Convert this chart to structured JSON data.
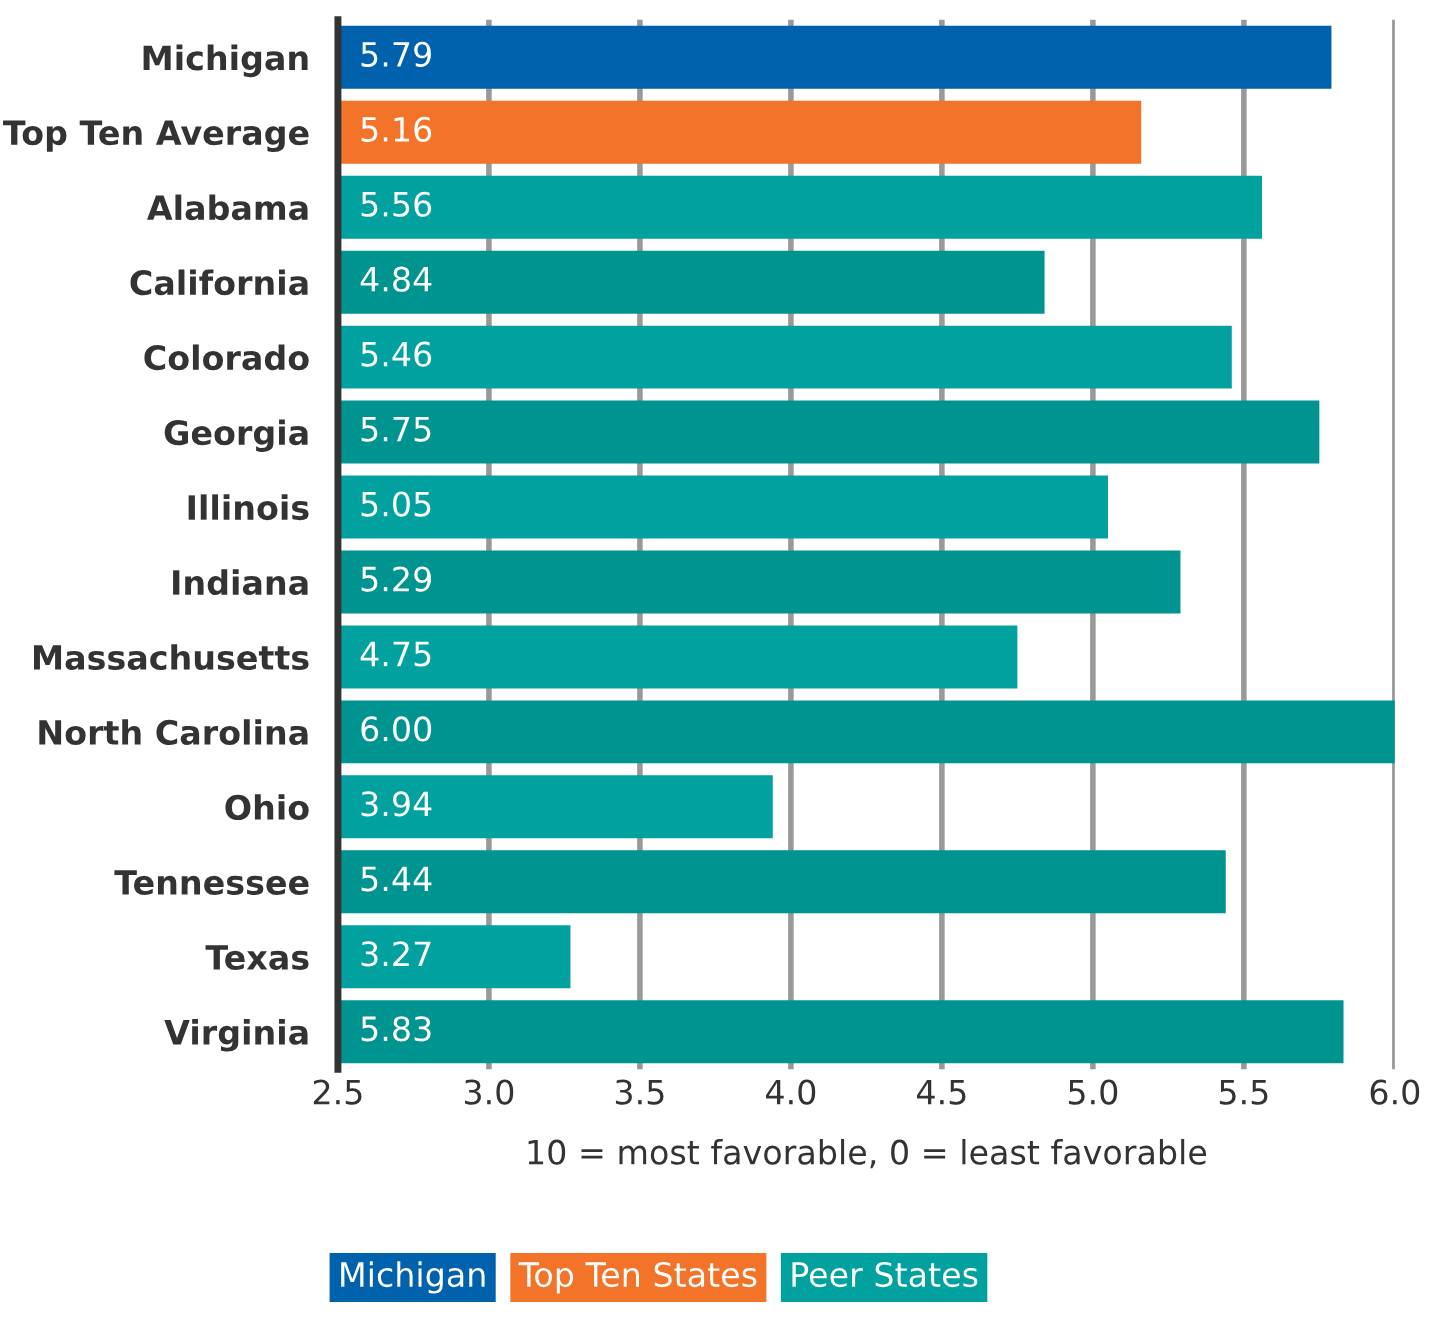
{
  "chart_data": {
    "type": "bar",
    "orientation": "horizontal",
    "xlabel": "10 = most favorable, 0 = least favorable",
    "categories": [
      "Michigan",
      "Top Ten Average",
      "Alabama",
      "California",
      "Colorado",
      "Georgia",
      "Illinois",
      "Indiana",
      "Massachusetts",
      "North Carolina",
      "Ohio",
      "Tennessee",
      "Texas",
      "Virginia"
    ],
    "series": [
      {
        "name": "Michigan",
        "color": "#0061ad",
        "values": [
          5.79,
          null,
          null,
          null,
          null,
          null,
          null,
          null,
          null,
          null,
          null,
          null,
          null,
          null
        ],
        "value_labels": [
          "5.79",
          null,
          null,
          null,
          null,
          null,
          null,
          null,
          null,
          null,
          null,
          null,
          null,
          null
        ]
      },
      {
        "name": "Top Ten States",
        "color": "#f37329",
        "values": [
          null,
          5.16,
          null,
          null,
          null,
          null,
          null,
          null,
          null,
          null,
          null,
          null,
          null,
          null
        ],
        "value_labels": [
          null,
          "5.16",
          null,
          null,
          null,
          null,
          null,
          null,
          null,
          null,
          null,
          null,
          null,
          null
        ]
      },
      {
        "name": "Peer States",
        "color": "#00a19f",
        "colors": [
          null,
          null,
          "#00a19f",
          "#009490",
          "#00a19f",
          "#009490",
          "#00a19f",
          "#009490",
          "#00a19f",
          "#009490",
          "#00a19f",
          "#009490",
          "#00a19f",
          "#009490"
        ],
        "values": [
          null,
          null,
          5.56,
          4.84,
          5.46,
          5.75,
          5.05,
          5.29,
          4.75,
          6.0,
          3.94,
          5.44,
          3.27,
          5.83
        ],
        "value_labels": [
          null,
          null,
          "5.56",
          "4.84",
          "5.46",
          "5.75",
          "5.05",
          "5.29",
          "4.75",
          "6.00",
          "3.94",
          "5.44",
          "3.27",
          "5.83"
        ]
      }
    ],
    "xlim": [
      2.5,
      6.0
    ],
    "xticks": [
      "2.5",
      "3.0",
      "3.5",
      "4.0",
      "4.5",
      "5.0",
      "5.5",
      "6.0"
    ],
    "grid": "x",
    "legend": "bottom"
  }
}
